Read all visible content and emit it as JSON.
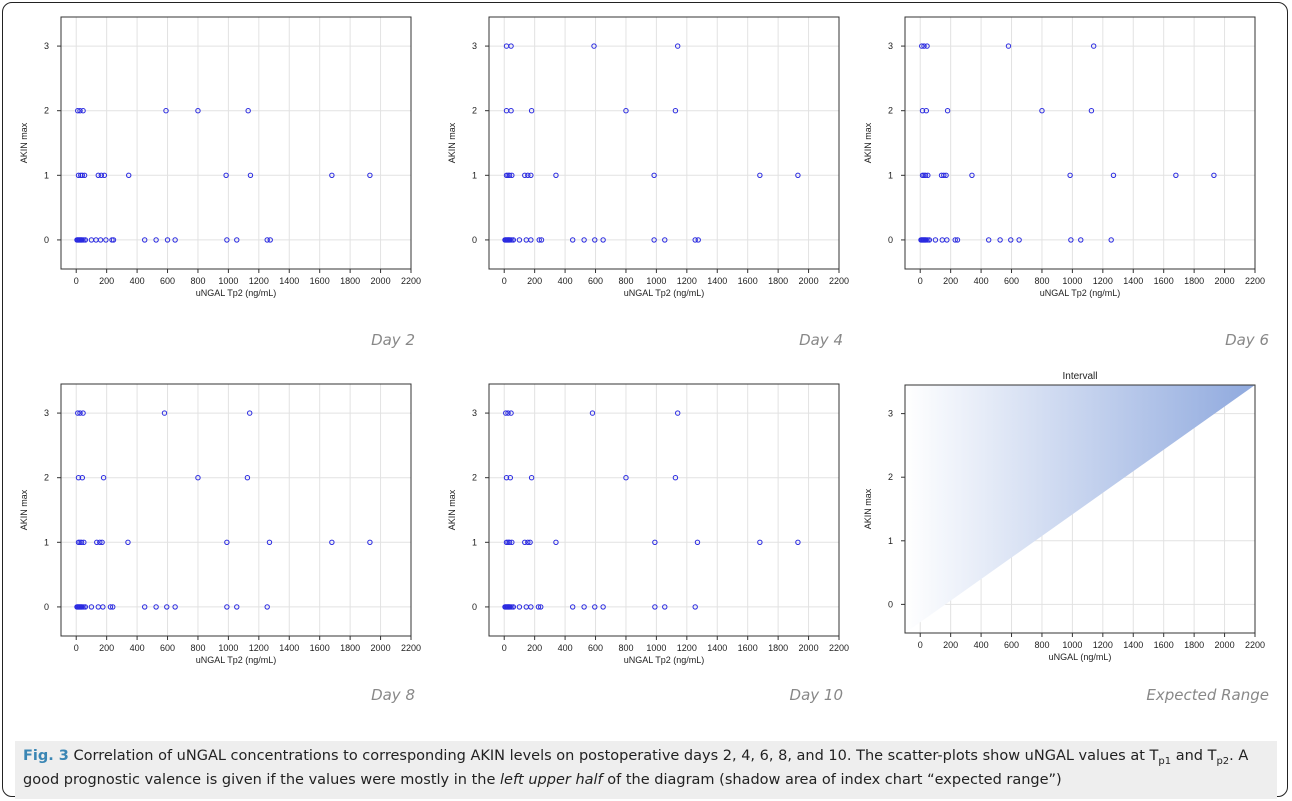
{
  "figure": {
    "caption_label": "Fig. 3",
    "caption_parts": [
      {
        "t": " Correlation of uNGAL concentrations to corresponding AKIN levels on postoperative days 2, 4, 6, 8, and 10. The scatter-plots show uNGAL values at T"
      },
      {
        "t": "p1",
        "sub": true
      },
      {
        "t": " and T"
      },
      {
        "t": "p2",
        "sub": true
      },
      {
        "t": ". A good prognostic valence is given if the values were mostly in the "
      },
      {
        "t": "left upper half",
        "i": true
      },
      {
        "t": " of the diagram (shadow area of index chart “expected range”)"
      }
    ]
  },
  "colors": {
    "marker": "#2a2ae0",
    "grid": "#e2e2e2",
    "axis": "#333333",
    "triangle_light": "#ffffff",
    "triangle_dark": "#8fa9de"
  },
  "chart_data": [
    {
      "type": "scatter",
      "label": "Day 2",
      "xlabel": "uNGAL Tp2 (ng/mL)",
      "ylabel": "AKIN max",
      "xlim": [
        -100,
        2200
      ],
      "ylim": [
        -0.45,
        3.45
      ],
      "xticks": [
        0,
        200,
        400,
        600,
        800,
        1000,
        1200,
        1400,
        1600,
        1800,
        2000,
        2200
      ],
      "yticks": [
        0,
        1,
        2,
        3
      ],
      "points": [
        [
          10,
          2
        ],
        [
          25,
          2
        ],
        [
          45,
          2
        ],
        [
          590,
          2
        ],
        [
          800,
          2
        ],
        [
          1130,
          2
        ],
        [
          15,
          1
        ],
        [
          30,
          1
        ],
        [
          40,
          1
        ],
        [
          55,
          1
        ],
        [
          145,
          1
        ],
        [
          165,
          1
        ],
        [
          185,
          1
        ],
        [
          345,
          1
        ],
        [
          985,
          1
        ],
        [
          1145,
          1
        ],
        [
          1680,
          1
        ],
        [
          1930,
          1
        ],
        [
          5,
          0
        ],
        [
          10,
          0
        ],
        [
          15,
          0
        ],
        [
          20,
          0
        ],
        [
          25,
          0
        ],
        [
          30,
          0
        ],
        [
          35,
          0
        ],
        [
          40,
          0
        ],
        [
          50,
          0
        ],
        [
          60,
          0
        ],
        [
          100,
          0
        ],
        [
          130,
          0
        ],
        [
          160,
          0
        ],
        [
          195,
          0
        ],
        [
          235,
          0
        ],
        [
          245,
          0
        ],
        [
          450,
          0
        ],
        [
          525,
          0
        ],
        [
          600,
          0
        ],
        [
          650,
          0
        ],
        [
          990,
          0
        ],
        [
          1055,
          0
        ],
        [
          1255,
          0
        ],
        [
          1275,
          0
        ]
      ]
    },
    {
      "type": "scatter",
      "label": "Day 4",
      "xlabel": "uNGAL Tp2 (ng/mL)",
      "ylabel": "AKIN max",
      "xlim": [
        -100,
        2200
      ],
      "ylim": [
        -0.45,
        3.45
      ],
      "xticks": [
        0,
        200,
        400,
        600,
        800,
        1000,
        1200,
        1400,
        1600,
        1800,
        2000,
        2200
      ],
      "yticks": [
        0,
        1,
        2,
        3
      ],
      "points": [
        [
          15,
          3
        ],
        [
          45,
          3
        ],
        [
          590,
          3
        ],
        [
          1140,
          3
        ],
        [
          15,
          2
        ],
        [
          45,
          2
        ],
        [
          180,
          2
        ],
        [
          800,
          2
        ],
        [
          1125,
          2
        ],
        [
          15,
          1
        ],
        [
          25,
          1
        ],
        [
          35,
          1
        ],
        [
          50,
          1
        ],
        [
          135,
          1
        ],
        [
          155,
          1
        ],
        [
          175,
          1
        ],
        [
          340,
          1
        ],
        [
          985,
          1
        ],
        [
          1680,
          1
        ],
        [
          1930,
          1
        ],
        [
          5,
          0
        ],
        [
          10,
          0
        ],
        [
          15,
          0
        ],
        [
          20,
          0
        ],
        [
          25,
          0
        ],
        [
          30,
          0
        ],
        [
          35,
          0
        ],
        [
          40,
          0
        ],
        [
          50,
          0
        ],
        [
          60,
          0
        ],
        [
          100,
          0
        ],
        [
          145,
          0
        ],
        [
          175,
          0
        ],
        [
          230,
          0
        ],
        [
          245,
          0
        ],
        [
          450,
          0
        ],
        [
          525,
          0
        ],
        [
          595,
          0
        ],
        [
          650,
          0
        ],
        [
          985,
          0
        ],
        [
          1055,
          0
        ],
        [
          1255,
          0
        ],
        [
          1275,
          0
        ]
      ]
    },
    {
      "type": "scatter",
      "label": "Day 6",
      "xlabel": "uNGAL Tp2 (ng/mL)",
      "ylabel": "AKIN max",
      "xlim": [
        -100,
        2200
      ],
      "ylim": [
        -0.45,
        3.45
      ],
      "xticks": [
        0,
        200,
        400,
        600,
        800,
        1000,
        1200,
        1400,
        1600,
        1800,
        2000,
        2200
      ],
      "yticks": [
        0,
        1,
        2,
        3
      ],
      "points": [
        [
          10,
          3
        ],
        [
          25,
          3
        ],
        [
          45,
          3
        ],
        [
          580,
          3
        ],
        [
          1140,
          3
        ],
        [
          15,
          2
        ],
        [
          40,
          2
        ],
        [
          180,
          2
        ],
        [
          800,
          2
        ],
        [
          1125,
          2
        ],
        [
          15,
          1
        ],
        [
          25,
          1
        ],
        [
          35,
          1
        ],
        [
          50,
          1
        ],
        [
          140,
          1
        ],
        [
          155,
          1
        ],
        [
          170,
          1
        ],
        [
          340,
          1
        ],
        [
          985,
          1
        ],
        [
          1270,
          1
        ],
        [
          1680,
          1
        ],
        [
          1930,
          1
        ],
        [
          5,
          0
        ],
        [
          10,
          0
        ],
        [
          15,
          0
        ],
        [
          20,
          0
        ],
        [
          25,
          0
        ],
        [
          30,
          0
        ],
        [
          35,
          0
        ],
        [
          40,
          0
        ],
        [
          50,
          0
        ],
        [
          60,
          0
        ],
        [
          100,
          0
        ],
        [
          145,
          0
        ],
        [
          175,
          0
        ],
        [
          230,
          0
        ],
        [
          245,
          0
        ],
        [
          450,
          0
        ],
        [
          525,
          0
        ],
        [
          595,
          0
        ],
        [
          650,
          0
        ],
        [
          990,
          0
        ],
        [
          1055,
          0
        ],
        [
          1255,
          0
        ]
      ]
    },
    {
      "type": "scatter",
      "label": "Day 8",
      "xlabel": "uNGAL Tp2 (ng/mL)",
      "ylabel": "AKIN max",
      "xlim": [
        -100,
        2200
      ],
      "ylim": [
        -0.45,
        3.45
      ],
      "xticks": [
        0,
        200,
        400,
        600,
        800,
        1000,
        1200,
        1400,
        1600,
        1800,
        2000,
        2200
      ],
      "yticks": [
        0,
        1,
        2,
        3
      ],
      "points": [
        [
          10,
          3
        ],
        [
          25,
          3
        ],
        [
          45,
          3
        ],
        [
          580,
          3
        ],
        [
          1140,
          3
        ],
        [
          15,
          2
        ],
        [
          40,
          2
        ],
        [
          180,
          2
        ],
        [
          800,
          2
        ],
        [
          1125,
          2
        ],
        [
          15,
          1
        ],
        [
          25,
          1
        ],
        [
          35,
          1
        ],
        [
          50,
          1
        ],
        [
          135,
          1
        ],
        [
          155,
          1
        ],
        [
          170,
          1
        ],
        [
          340,
          1
        ],
        [
          990,
          1
        ],
        [
          1270,
          1
        ],
        [
          1680,
          1
        ],
        [
          1930,
          1
        ],
        [
          5,
          0
        ],
        [
          10,
          0
        ],
        [
          15,
          0
        ],
        [
          20,
          0
        ],
        [
          25,
          0
        ],
        [
          30,
          0
        ],
        [
          35,
          0
        ],
        [
          40,
          0
        ],
        [
          50,
          0
        ],
        [
          60,
          0
        ],
        [
          100,
          0
        ],
        [
          145,
          0
        ],
        [
          175,
          0
        ],
        [
          225,
          0
        ],
        [
          240,
          0
        ],
        [
          450,
          0
        ],
        [
          525,
          0
        ],
        [
          595,
          0
        ],
        [
          650,
          0
        ],
        [
          990,
          0
        ],
        [
          1055,
          0
        ],
        [
          1255,
          0
        ]
      ]
    },
    {
      "type": "scatter",
      "label": "Day 10",
      "xlabel": "uNGAL Tp2 (ng/mL)",
      "ylabel": "AKIN max",
      "xlim": [
        -100,
        2200
      ],
      "ylim": [
        -0.45,
        3.45
      ],
      "xticks": [
        0,
        200,
        400,
        600,
        800,
        1000,
        1200,
        1400,
        1600,
        1800,
        2000,
        2200
      ],
      "yticks": [
        0,
        1,
        2,
        3
      ],
      "points": [
        [
          10,
          3
        ],
        [
          25,
          3
        ],
        [
          45,
          3
        ],
        [
          580,
          3
        ],
        [
          1140,
          3
        ],
        [
          15,
          2
        ],
        [
          40,
          2
        ],
        [
          180,
          2
        ],
        [
          800,
          2
        ],
        [
          1125,
          2
        ],
        [
          15,
          1
        ],
        [
          25,
          1
        ],
        [
          35,
          1
        ],
        [
          50,
          1
        ],
        [
          135,
          1
        ],
        [
          155,
          1
        ],
        [
          170,
          1
        ],
        [
          340,
          1
        ],
        [
          990,
          1
        ],
        [
          1270,
          1
        ],
        [
          1680,
          1
        ],
        [
          1930,
          1
        ],
        [
          5,
          0
        ],
        [
          10,
          0
        ],
        [
          15,
          0
        ],
        [
          20,
          0
        ],
        [
          25,
          0
        ],
        [
          30,
          0
        ],
        [
          35,
          0
        ],
        [
          40,
          0
        ],
        [
          50,
          0
        ],
        [
          60,
          0
        ],
        [
          100,
          0
        ],
        [
          145,
          0
        ],
        [
          175,
          0
        ],
        [
          225,
          0
        ],
        [
          240,
          0
        ],
        [
          450,
          0
        ],
        [
          525,
          0
        ],
        [
          595,
          0
        ],
        [
          650,
          0
        ],
        [
          990,
          0
        ],
        [
          1055,
          0
        ],
        [
          1255,
          0
        ]
      ]
    },
    {
      "type": "area",
      "label": "Expected Range",
      "title": "Intervall",
      "xlabel": "uNGAL (ng/mL)",
      "ylabel": "AKIN max",
      "xlim": [
        -100,
        2200
      ],
      "ylim": [
        -0.45,
        3.45
      ],
      "xticks": [
        0,
        200,
        400,
        600,
        800,
        1000,
        1200,
        1400,
        1600,
        1800,
        2000,
        2200
      ],
      "yticks": [
        0,
        1,
        2,
        3
      ],
      "polygon": [
        [
          -100,
          -0.45
        ],
        [
          2200,
          3.45
        ],
        [
          -100,
          3.45
        ]
      ]
    }
  ]
}
